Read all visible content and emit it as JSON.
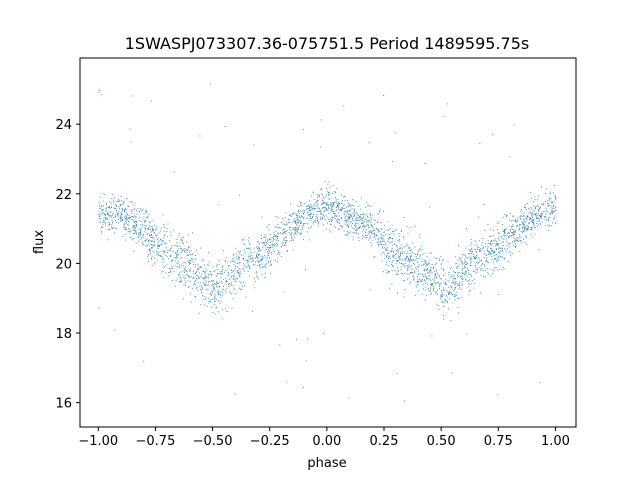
{
  "chart_data": {
    "type": "scatter",
    "title": "1SWASPJ073307.36-075751.5 Period 1489595.75s",
    "xlabel": "phase",
    "ylabel": "flux",
    "xlim": [
      -1.08,
      1.09
    ],
    "ylim": [
      15.3,
      25.9
    ],
    "xticks": [
      -1.0,
      -0.75,
      -0.5,
      -0.25,
      0.0,
      0.25,
      0.5,
      0.75,
      1.0
    ],
    "xtick_labels": [
      "−1.00",
      "−0.75",
      "−0.50",
      "−0.25",
      "0.00",
      "0.25",
      "0.50",
      "0.75",
      "1.00"
    ],
    "yticks": [
      16,
      18,
      20,
      22,
      24
    ],
    "ytick_labels": [
      "16",
      "18",
      "20",
      "22",
      "24"
    ],
    "grid": false,
    "marker_color": "#1f77b4",
    "series": [
      {
        "description_of_trend": "phase-folded light curve, symmetric about 0",
        "x": [
          -1.0,
          -0.95,
          -0.9,
          -0.85,
          -0.8,
          -0.75,
          -0.7,
          -0.65,
          -0.6,
          -0.55,
          -0.5,
          -0.45,
          -0.4,
          -0.35,
          -0.3,
          -0.25,
          -0.2,
          -0.15,
          -0.1,
          -0.05,
          0.0,
          0.05,
          0.1,
          0.15,
          0.2,
          0.25,
          0.3,
          0.35,
          0.4,
          0.45,
          0.5,
          0.55,
          0.6,
          0.65,
          0.7,
          0.75,
          0.8,
          0.85,
          0.9,
          0.95,
          1.0
        ],
        "y": [
          21.4,
          21.5,
          21.4,
          21.2,
          21.0,
          20.6,
          20.3,
          20.1,
          20.0,
          19.6,
          19.3,
          19.4,
          19.9,
          20.1,
          20.3,
          20.5,
          20.8,
          21.1,
          21.3,
          21.5,
          21.7,
          21.5,
          21.3,
          21.2,
          21.0,
          20.6,
          20.3,
          20.1,
          20.0,
          19.6,
          19.3,
          19.4,
          19.9,
          20.1,
          20.3,
          20.5,
          20.8,
          21.1,
          21.3,
          21.5,
          21.7
        ],
        "scatter_spread": [
          0.5,
          0.5,
          0.5,
          0.5,
          0.55,
          0.65,
          0.7,
          0.7,
          0.7,
          0.7,
          0.7,
          0.7,
          0.7,
          0.6,
          0.6,
          0.55,
          0.55,
          0.5,
          0.5,
          0.5,
          0.55,
          0.5,
          0.5,
          0.5,
          0.55,
          0.65,
          0.7,
          0.7,
          0.7,
          0.7,
          0.7,
          0.7,
          0.7,
          0.6,
          0.6,
          0.55,
          0.55,
          0.5,
          0.5,
          0.5,
          0.55
        ]
      }
    ]
  }
}
